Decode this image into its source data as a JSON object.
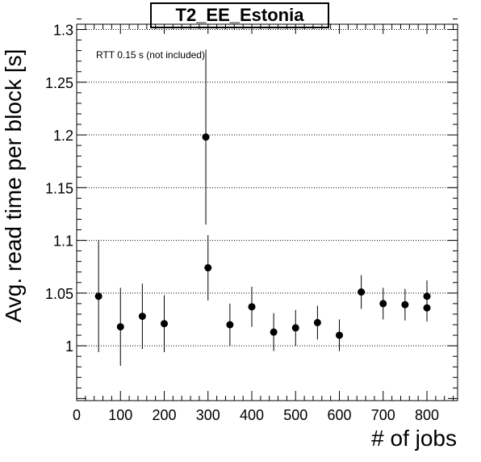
{
  "chart_data": {
    "type": "scatter",
    "title": "T2_EE_Estonia",
    "xlabel": "# of jobs",
    "ylabel": "Avg. read time per block [s]",
    "annotation": "RTT 0.15 s (not included)",
    "xlim": [
      0,
      870
    ],
    "ylim": [
      0.948,
      1.305
    ],
    "x_ticks": [
      0,
      100,
      200,
      300,
      400,
      500,
      600,
      700,
      800
    ],
    "y_ticks": [
      1,
      1.05,
      1.1,
      1.15,
      1.2,
      1.25,
      1.3
    ],
    "y_tick_labels": [
      "1",
      "1.05",
      "1.1",
      "1.15",
      "1.2",
      "1.25",
      "1.3"
    ],
    "grid": "horizontal-dotted",
    "points": [
      {
        "x": 50,
        "y": 1.047,
        "err": 0.053
      },
      {
        "x": 100,
        "y": 1.018,
        "err": 0.037
      },
      {
        "x": 150,
        "y": 1.028,
        "err": 0.031
      },
      {
        "x": 200,
        "y": 1.021,
        "err": 0.027
      },
      {
        "x": 295,
        "y": 1.198,
        "err": 0.083
      },
      {
        "x": 300,
        "y": 1.074,
        "err": 0.031
      },
      {
        "x": 350,
        "y": 1.02,
        "err": 0.02
      },
      {
        "x": 400,
        "y": 1.037,
        "err": 0.019
      },
      {
        "x": 450,
        "y": 1.013,
        "err": 0.018
      },
      {
        "x": 500,
        "y": 1.017,
        "err": 0.017
      },
      {
        "x": 550,
        "y": 1.022,
        "err": 0.016
      },
      {
        "x": 600,
        "y": 1.01,
        "err": 0.015
      },
      {
        "x": 650,
        "y": 1.051,
        "err": 0.016
      },
      {
        "x": 700,
        "y": 1.04,
        "err": 0.015
      },
      {
        "x": 750,
        "y": 1.039,
        "err": 0.015
      },
      {
        "x": 800,
        "y": 1.047,
        "err": 0.015
      },
      {
        "x": 800,
        "y": 1.036,
        "err": 0.013
      }
    ],
    "marker_color": "#000000"
  }
}
